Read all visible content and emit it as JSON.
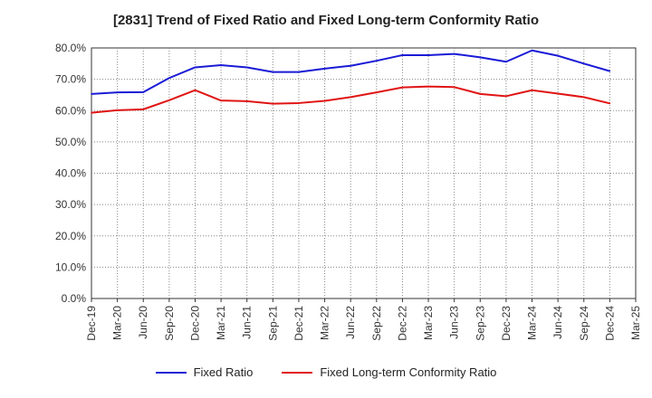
{
  "chart_data": {
    "type": "line",
    "title": "[2831]  Trend of Fixed Ratio and Fixed Long-term Conformity Ratio",
    "xlabel": "",
    "ylabel": "",
    "x": [
      "Dec-19",
      "Mar-20",
      "Jun-20",
      "Sep-20",
      "Dec-20",
      "Mar-21",
      "Jun-21",
      "Sep-21",
      "Dec-21",
      "Mar-22",
      "Jun-22",
      "Sep-22",
      "Dec-22",
      "Mar-23",
      "Jun-23",
      "Sep-23",
      "Dec-23",
      "Mar-24",
      "Jun-24",
      "Sep-24",
      "Dec-24",
      "Mar-25"
    ],
    "ylim": [
      0,
      80
    ],
    "yticks": [
      "0.0%",
      "10.0%",
      "20.0%",
      "30.0%",
      "40.0%",
      "50.0%",
      "60.0%",
      "70.0%",
      "80.0%"
    ],
    "grid": true,
    "legend_position": "bottom",
    "series": [
      {
        "name": "Fixed Ratio",
        "color": "#1a1ad6",
        "values": [
          65.3,
          65.8,
          65.9,
          70.4,
          73.8,
          74.5,
          73.8,
          72.3,
          72.3,
          73.4,
          74.3,
          75.9,
          77.7,
          77.7,
          78.1,
          77.0,
          75.6,
          79.2,
          77.5,
          75.0,
          72.6,
          null
        ]
      },
      {
        "name": "Fixed Long-term Conformity Ratio",
        "color": "#e01414",
        "values": [
          59.3,
          60.1,
          60.4,
          63.3,
          66.5,
          63.2,
          63.0,
          62.2,
          62.4,
          63.1,
          64.3,
          65.8,
          67.4,
          67.7,
          67.5,
          65.3,
          64.6,
          66.5,
          65.4,
          64.3,
          62.3,
          null
        ]
      }
    ]
  }
}
